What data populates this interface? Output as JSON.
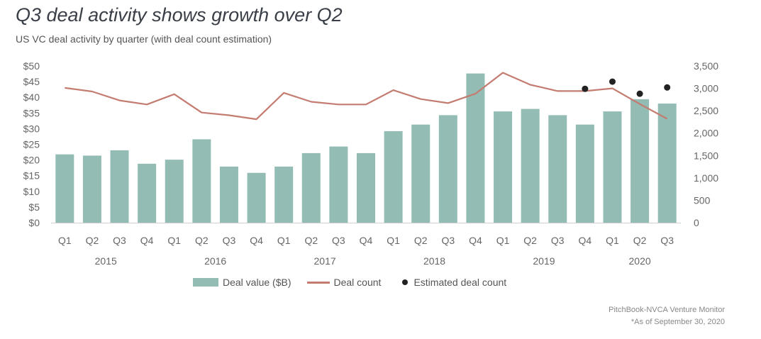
{
  "header": {
    "title": "Q3 deal activity shows growth over Q2",
    "subtitle": "US VC deal activity by quarter (with deal count estimation)"
  },
  "footer": {
    "source": "PitchBook-NVCA Venture Monitor",
    "note": "*As of September 30, 2020"
  },
  "colors": {
    "bar": "#93bcb5",
    "line": "#c47c71",
    "dot": "#222222"
  },
  "chart_data": {
    "type": "bar",
    "categories": [
      "Q1",
      "Q2",
      "Q3",
      "Q4",
      "Q1",
      "Q2",
      "Q3",
      "Q4",
      "Q1",
      "Q2",
      "Q3",
      "Q4",
      "Q1",
      "Q2",
      "Q3",
      "Q4",
      "Q1",
      "Q2",
      "Q3",
      "Q4",
      "Q1",
      "Q2",
      "Q3"
    ],
    "year_groups": [
      {
        "label": "2015",
        "start": 0,
        "end": 3
      },
      {
        "label": "2016",
        "start": 4,
        "end": 7
      },
      {
        "label": "2017",
        "start": 8,
        "end": 11
      },
      {
        "label": "2018",
        "start": 12,
        "end": 15
      },
      {
        "label": "2019",
        "start": 16,
        "end": 19
      },
      {
        "label": "2020",
        "start": 20,
        "end": 22
      }
    ],
    "series": [
      {
        "name": "Deal value ($B)",
        "type": "bar",
        "axis": "left",
        "values": [
          21.8,
          21.4,
          23.1,
          18.8,
          20.1,
          26.6,
          17.9,
          15.9,
          17.9,
          22.2,
          24.3,
          22.2,
          29.2,
          31.3,
          34.3,
          47.6,
          35.5,
          36.3,
          34.3,
          31.3,
          35.5,
          39.4,
          38.0
        ]
      },
      {
        "name": "Deal count",
        "type": "line",
        "axis": "right",
        "values": [
          3010,
          2930,
          2730,
          2640,
          2870,
          2460,
          2400,
          2310,
          2900,
          2700,
          2640,
          2640,
          2960,
          2760,
          2670,
          2880,
          3350,
          3080,
          2940,
          2940,
          3000,
          2650,
          2320
        ]
      },
      {
        "name": "Estimated deal count",
        "type": "scatter",
        "axis": "right",
        "points": [
          {
            "index": 19,
            "value": 2990
          },
          {
            "index": 20,
            "value": 3150
          },
          {
            "index": 21,
            "value": 2880
          },
          {
            "index": 22,
            "value": 3020
          }
        ]
      }
    ],
    "y_left": {
      "min": 0,
      "max": 50,
      "step": 5,
      "tick_labels": [
        "$0",
        "$5",
        "$10",
        "$15",
        "$20",
        "$25",
        "$30",
        "$35",
        "$40",
        "$45",
        "$50"
      ]
    },
    "y_right": {
      "min": 0,
      "max": 3500,
      "step": 500,
      "tick_labels": [
        "0",
        "500",
        "1,000",
        "1,500",
        "2,000",
        "2,500",
        "3,000",
        "3,500"
      ]
    },
    "grid": false,
    "legend_position": "bottom"
  }
}
